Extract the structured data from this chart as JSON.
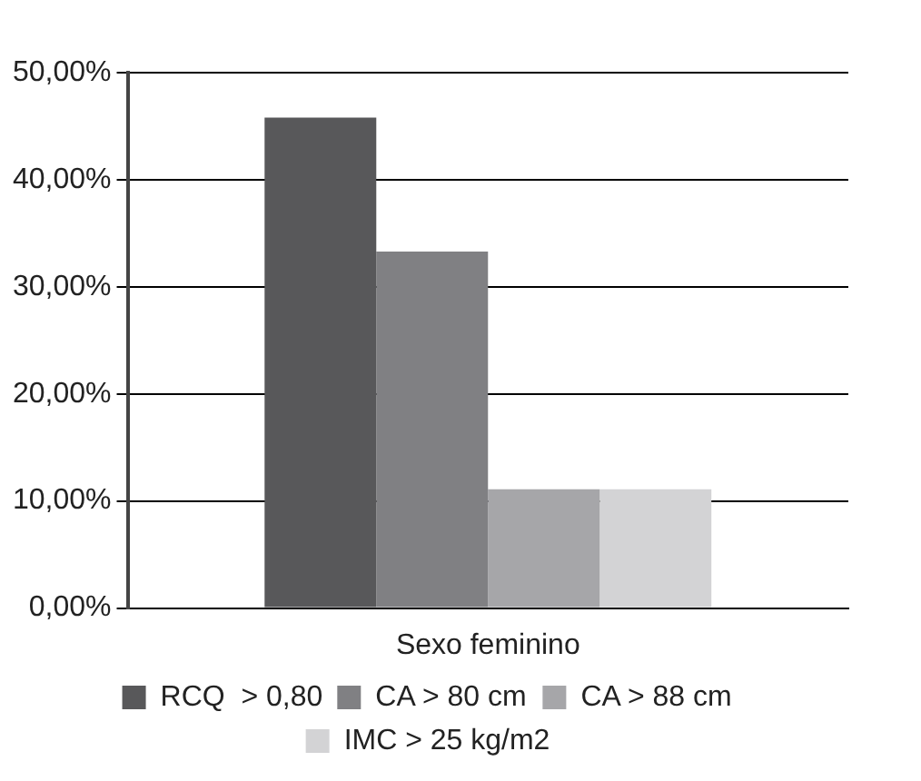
{
  "chart_data": {
    "type": "bar",
    "categories": [
      "Sexo feminino"
    ],
    "series": [
      {
        "name": "RCQ  > 0,80",
        "color": "#58585a",
        "values": [
          45.8
        ]
      },
      {
        "name": "CA > 80 cm",
        "color": "#808083",
        "values": [
          33.3
        ]
      },
      {
        "name": "CA > 88 cm",
        "color": "#a6a6a9",
        "values": [
          11.1
        ]
      },
      {
        "name": "IMC > 25 kg/m2",
        "color": "#d3d3d5",
        "values": [
          11.1
        ]
      }
    ],
    "ylim": [
      0,
      50
    ],
    "yticks": [
      {
        "value": 0,
        "label": "0,00%"
      },
      {
        "value": 10,
        "label": "10,00%"
      },
      {
        "value": 20,
        "label": "20,00%"
      },
      {
        "value": 30,
        "label": "30,00%"
      },
      {
        "value": 40,
        "label": "40,00%"
      },
      {
        "value": 50,
        "label": "50,00%"
      }
    ],
    "grid": "y",
    "legend": "bottom"
  }
}
